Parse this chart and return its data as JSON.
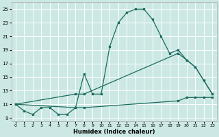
{
  "xlabel": "Humidex (Indice chaleur)",
  "background_color": "#cce8e4",
  "grid_color": "#ffffff",
  "line_color": "#1a6b5e",
  "xlim": [
    -0.5,
    23.5
  ],
  "ylim": [
    8.5,
    26
  ],
  "xticks": [
    0,
    1,
    2,
    3,
    4,
    5,
    6,
    7,
    8,
    9,
    10,
    11,
    12,
    13,
    14,
    15,
    16,
    17,
    18,
    19,
    20,
    21,
    22,
    23
  ],
  "yticks": [
    9,
    11,
    13,
    15,
    17,
    19,
    21,
    23,
    25
  ],
  "line1_x": [
    0,
    1,
    2,
    3,
    4,
    5,
    6,
    7,
    8,
    9,
    10,
    11,
    12,
    13,
    14,
    15,
    16,
    17,
    18,
    19,
    20,
    21,
    22,
    23
  ],
  "line1_y": [
    11,
    10,
    9.5,
    10.5,
    10.5,
    9.5,
    9.5,
    10.5,
    15.5,
    12.5,
    12.5,
    19.5,
    23,
    24.5,
    25,
    25,
    23.5,
    21,
    18.5,
    19,
    17.5,
    16.5,
    14.5,
    12.5
  ],
  "line2_x": [
    0,
    7,
    8,
    19,
    20,
    21,
    22,
    23
  ],
  "line2_y": [
    11,
    12.5,
    12.5,
    18.5,
    17.5,
    16.5,
    14.5,
    12.5
  ],
  "line3_x": [
    0,
    7,
    8,
    19,
    20,
    21,
    22,
    23
  ],
  "line3_y": [
    11,
    10.5,
    10.5,
    11.5,
    12,
    12,
    12,
    12
  ]
}
